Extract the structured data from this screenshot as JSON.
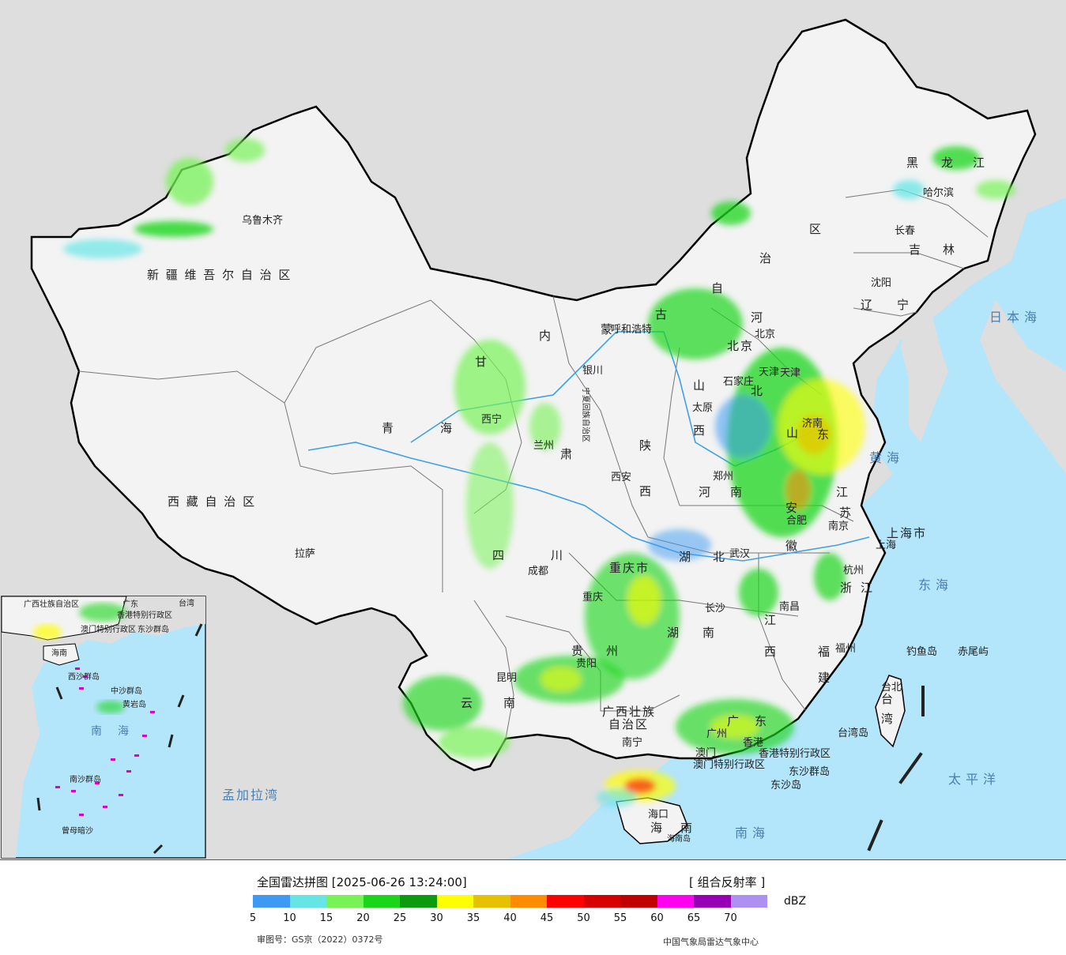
{
  "legend": {
    "title": "全国雷达拼图 [2025-06-26 13:24:00]",
    "product": "[ 组合反射率 ]",
    "unit": "dBZ",
    "colors": [
      "#3d99f2",
      "#66e5e5",
      "#77f257",
      "#19d619",
      "#0e9a0e",
      "#ffff00",
      "#e5c100",
      "#ff8c00",
      "#ff0000",
      "#d60000",
      "#c00000",
      "#ff00f0",
      "#9800b4",
      "#ad90f0"
    ],
    "ticks": [
      "5",
      "10",
      "15",
      "20",
      "25",
      "30",
      "35",
      "40",
      "45",
      "50",
      "55",
      "60",
      "65",
      "70"
    ],
    "approval": "审图号：GS京（2022）0372号",
    "organization": "中国气象局雷达气象中心"
  },
  "regions": {
    "xinjiang": "新 疆 维 吾 尔 自 治 区",
    "xizang": "西 藏 自 治 区",
    "qinghai": [
      "青",
      "海"
    ],
    "gansu": [
      "甘",
      "肃"
    ],
    "neimenggu": [
      "内",
      "蒙",
      "古",
      "自",
      "治",
      "区"
    ],
    "heilongjiang": [
      "黑",
      "龙",
      "江"
    ],
    "jilin": [
      "吉",
      "林"
    ],
    "liaoning": [
      "辽",
      "宁"
    ],
    "hebei": [
      "河",
      "北"
    ],
    "shanxi": [
      "山",
      "西"
    ],
    "shaanxi": [
      "陕",
      "西"
    ],
    "ningxia": "宁夏回族自治区",
    "shandong": [
      "山",
      "东"
    ],
    "henan": [
      "河",
      "南"
    ],
    "jiangsu": [
      "江",
      "苏"
    ],
    "anhui": [
      "安",
      "徽"
    ],
    "zhejiang": [
      "浙",
      "江"
    ],
    "hubei": [
      "湖",
      "北"
    ],
    "hunan": [
      "湖",
      "南"
    ],
    "jiangxi": [
      "江",
      "西"
    ],
    "fujian": [
      "福",
      "建"
    ],
    "sichuan": [
      "四",
      "川"
    ],
    "chongqing": "重庆市",
    "guizhou": [
      "贵",
      "州"
    ],
    "yunnan": [
      "云",
      "南"
    ],
    "guangxi": [
      "广西壮族",
      "自治区"
    ],
    "guangdong": [
      "广",
      "东"
    ],
    "hainan": [
      "海",
      "南"
    ],
    "taiwan": [
      "台",
      "湾"
    ],
    "shanghai": "上海市",
    "tianjin": "天津",
    "beijing": "北京",
    "hongkong": "香港特别行政区",
    "macao": "澳门特别行政区"
  },
  "cities": {
    "urumqi": "乌鲁木齐",
    "lhasa": "拉萨",
    "xining": "西宁",
    "lanzhou": "兰州",
    "yinchuan": "银川",
    "hohhot": "呼和浩特",
    "beijing": "北京",
    "tianjin": "天津",
    "shijiazhuang": "石家庄",
    "taiyuan": "太原",
    "xian": "西安",
    "zhengzhou": "郑州",
    "jinan": "济南",
    "hefei": "合肥",
    "nanjing": "南京",
    "shanghai": "上海",
    "hangzhou": "杭州",
    "wuhan": "武汉",
    "changsha": "长沙",
    "nanchang": "南昌",
    "fuzhou": "福州",
    "taibei": "台北",
    "chengdu": "成都",
    "chongqing": "重庆",
    "guiyang": "贵阳",
    "kunming": "昆明",
    "nanning": "南宁",
    "guangzhou": "广州",
    "hongkong": "香港",
    "macao": "澳门",
    "haikou": "海口",
    "harbin": "哈尔滨",
    "changchun": "长春",
    "shenyang": "沈阳"
  },
  "islands": {
    "diaoyu": "钓鱼岛",
    "chiwei": "赤尾屿",
    "taiwan_island": "台湾岛",
    "dongsha_qundao": "东沙群岛",
    "dongsha_dao": "东沙岛",
    "hainan_dao": "海南岛"
  },
  "seas": {
    "japan": "日本海",
    "huanghai": "黄海",
    "donghai": "东海",
    "nanhai": "南海",
    "pacific": "太平洋",
    "bengal": "孟加拉湾"
  },
  "inset": {
    "guangxi": "广西壮族自治区",
    "guangdong": "广东",
    "hongkong": "香港特别行政区",
    "macao": "澳门特别行政区",
    "taiwan": "台湾",
    "hainan": "海南",
    "dongsha": "东沙群岛",
    "xisha": "西沙群岛",
    "zhongsha": "中沙群岛",
    "huangyan": "黄岩岛",
    "nansha": "南沙群岛",
    "nanhai": "南海",
    "zengmu": "曾母暗沙"
  },
  "colors": {
    "ocean": "#b3e5fb",
    "land_china": "#f2f2f2",
    "land_other": "#dadada",
    "border": "#000000"
  }
}
